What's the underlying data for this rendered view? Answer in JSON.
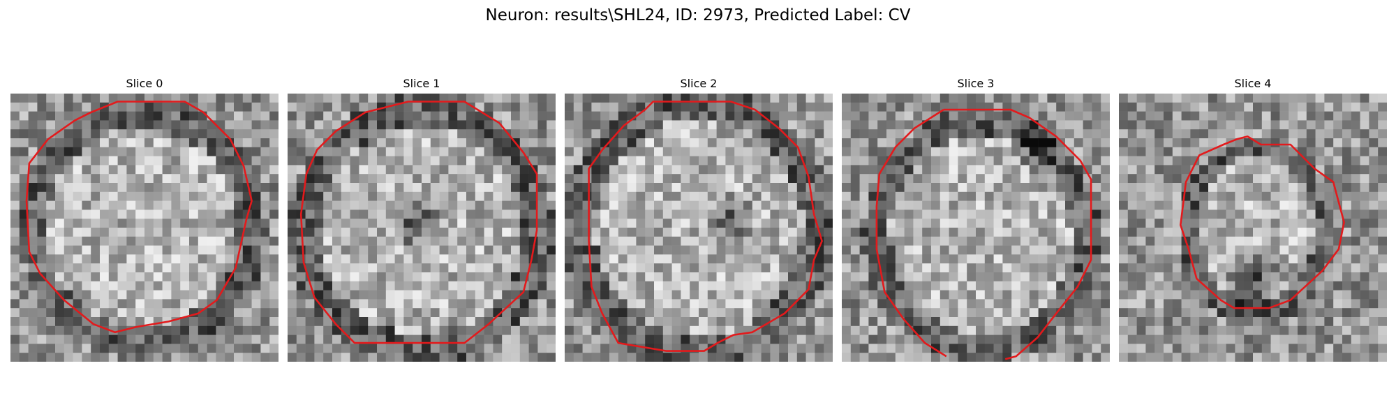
{
  "figure": {
    "title": "Neuron: results\\SHL24, ID: 2973, Predicted Label: CV"
  },
  "colors": {
    "contour": "#e31a1c",
    "background": "#ffffff"
  },
  "panels": [
    {
      "title": "Slice 0"
    },
    {
      "title": "Slice 1"
    },
    {
      "title": "Slice 2"
    },
    {
      "title": "Slice 3"
    },
    {
      "title": "Slice 4"
    }
  ]
}
